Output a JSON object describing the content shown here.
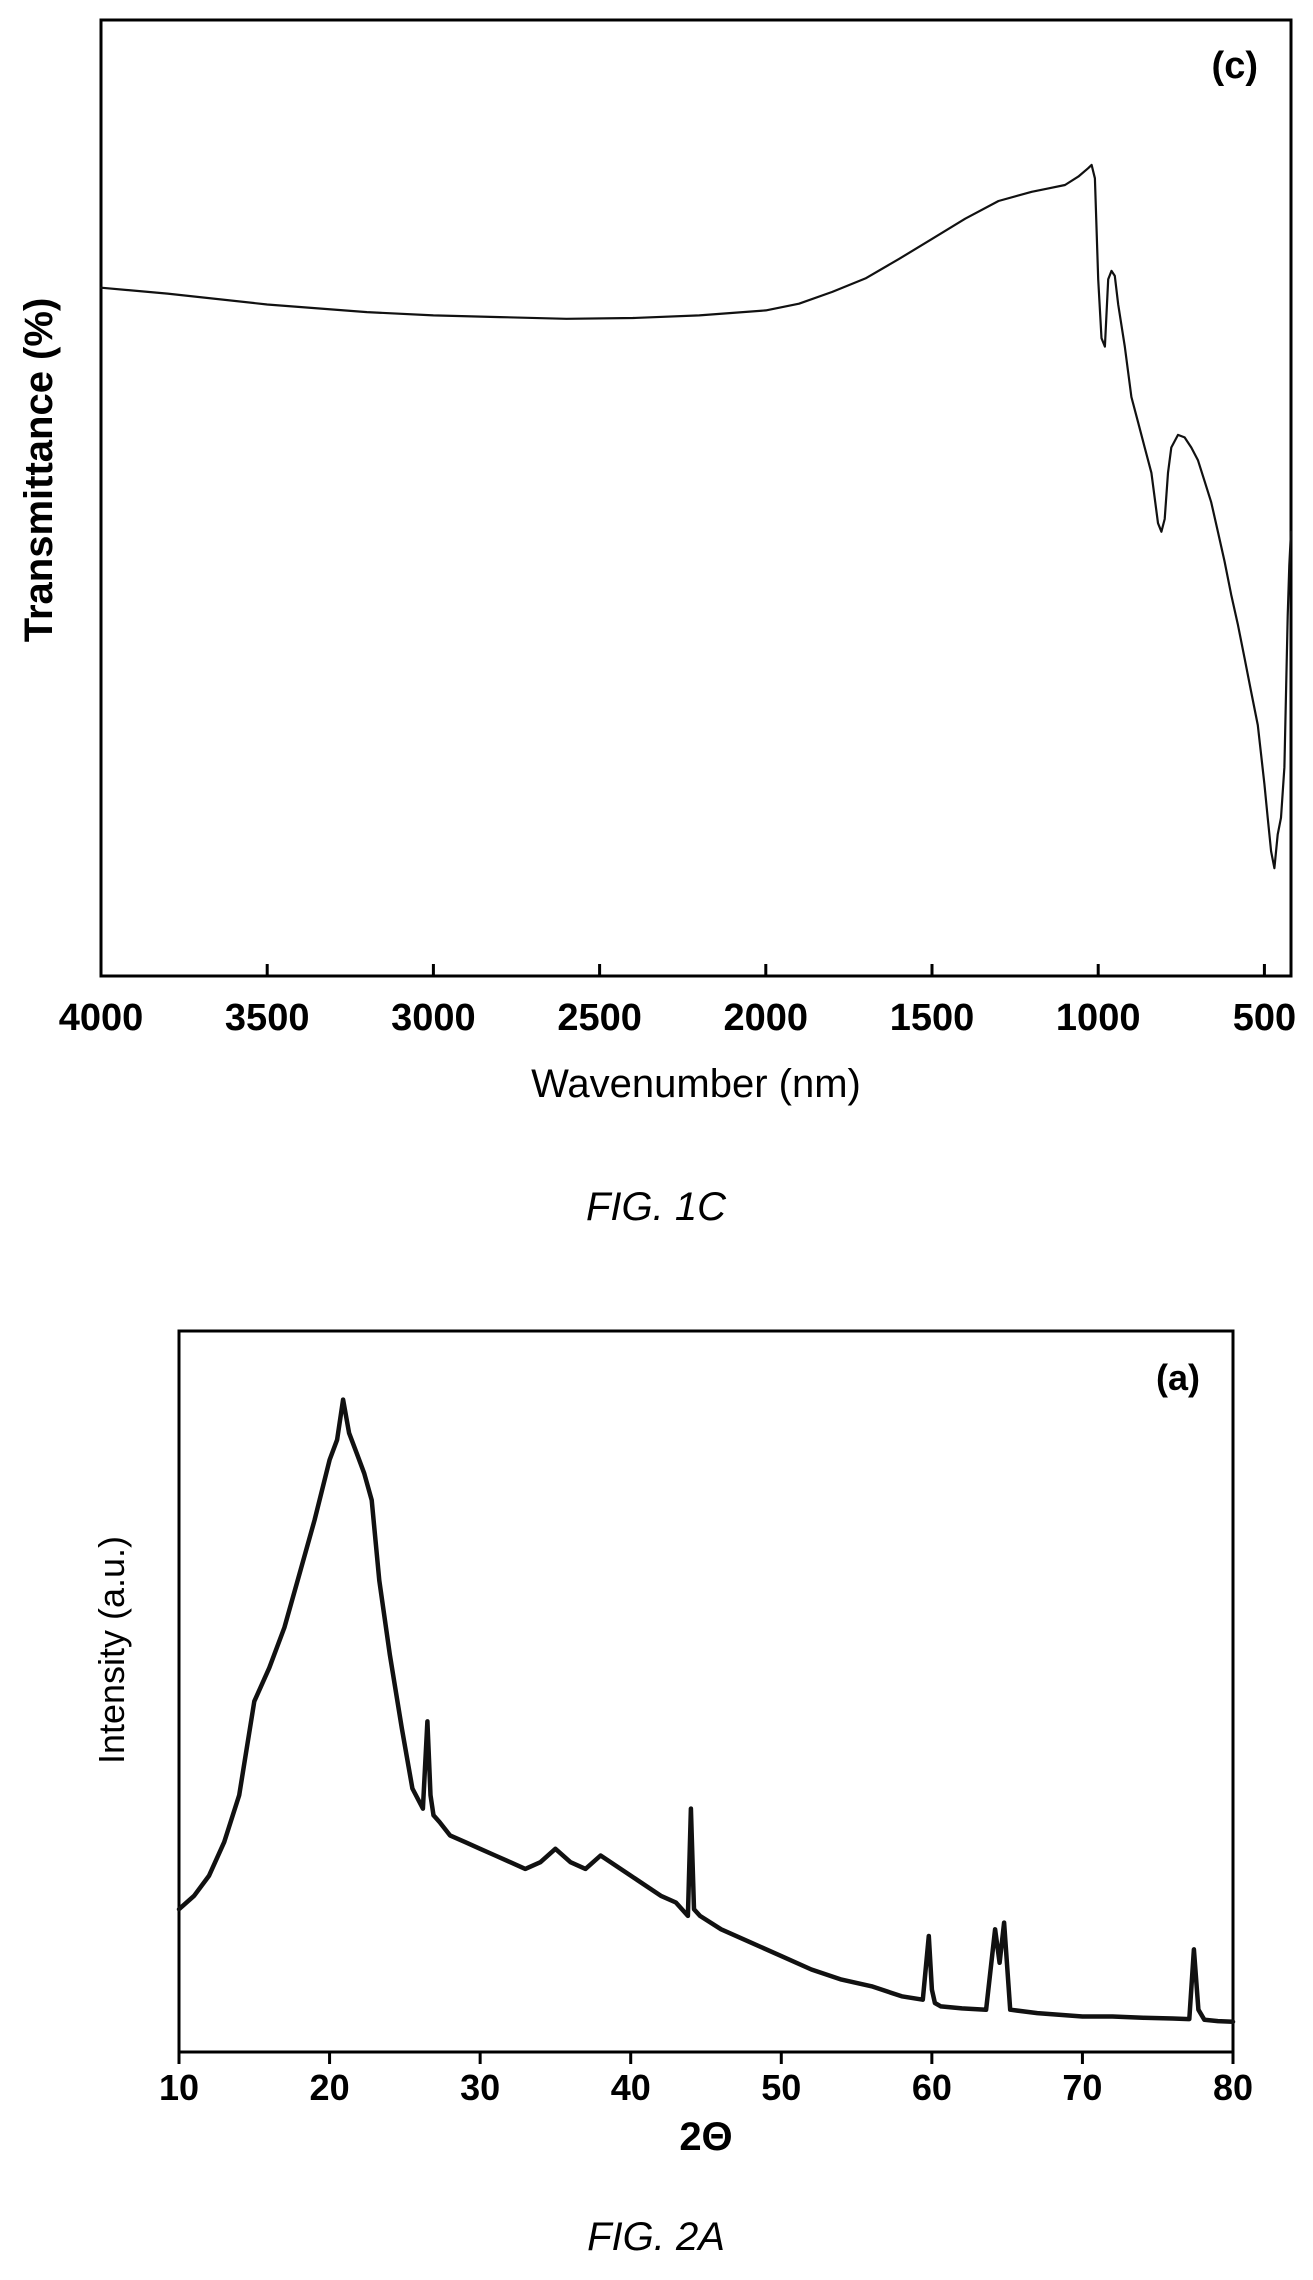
{
  "figures": [
    {
      "caption": "FIG. 1C"
    },
    {
      "caption": "FIG. 2A"
    }
  ],
  "chart_data": [
    {
      "type": "line",
      "panel_label": "(c)",
      "xlabel": "Wavenumber (nm)",
      "ylabel": "Transmittance (%)",
      "xlim": [
        4000,
        420
      ],
      "x_reversed": true,
      "ylim": [
        0,
        100
      ],
      "y_ticks_shown": false,
      "xticks": [
        4000,
        3500,
        3000,
        2500,
        2000,
        1500,
        1000,
        500
      ],
      "xtick_labels": [
        "4000",
        "3500",
        "3000",
        "2500",
        "2000",
        "1500",
        "1000",
        "500"
      ],
      "grid": false,
      "legend": "none",
      "line_color": "#222222",
      "series": [
        {
          "x": [
            4000,
            3800,
            3500,
            3200,
            3000,
            2800,
            2600,
            2400,
            2200,
            2000,
            1900,
            1800,
            1700,
            1600,
            1500,
            1400,
            1300,
            1200,
            1150,
            1100,
            1060,
            1030,
            1020,
            1010,
            1000,
            990,
            980,
            970,
            960,
            950,
            940,
            920,
            900,
            880,
            860,
            840,
            820,
            810,
            800,
            790,
            780,
            760,
            740,
            720,
            700,
            680,
            660,
            640,
            620,
            600,
            580,
            560,
            540,
            520,
            500,
            490,
            480,
            470,
            460,
            450,
            440,
            430,
            425,
            420
          ],
          "y": [
            75,
            74.3,
            73,
            72.1,
            71.7,
            71.5,
            71.3,
            71.4,
            71.7,
            72.3,
            73.1,
            74.5,
            76.1,
            78.4,
            80.8,
            83.2,
            85.3,
            86.4,
            86.8,
            87.2,
            88.2,
            89.2,
            89.6,
            88,
            76,
            69,
            68,
            76,
            77,
            76.4,
            73,
            68,
            62,
            59,
            56,
            53,
            47,
            46,
            47.5,
            53,
            56,
            57.5,
            57.2,
            56,
            54.5,
            52,
            49.5,
            46,
            42.5,
            38.5,
            35,
            31,
            27,
            23,
            16,
            12,
            8,
            6,
            10,
            12,
            18,
            36,
            42,
            46
          ]
        }
      ]
    },
    {
      "type": "line",
      "panel_label": "(a)",
      "xlabel": "2Θ",
      "ylabel": "Intensity (a.u.)",
      "xlim": [
        10,
        80
      ],
      "ylim": [
        0,
        100
      ],
      "y_ticks_shown": false,
      "xticks": [
        10,
        20,
        30,
        40,
        50,
        60,
        70,
        80
      ],
      "xtick_labels": [
        "10",
        "20",
        "30",
        "40",
        "50",
        "60",
        "70",
        "80"
      ],
      "grid": false,
      "legend": "none",
      "line_color": "#000000",
      "series": [
        {
          "x": [
            10,
            11,
            12,
            13,
            14,
            15,
            16,
            17,
            18,
            19,
            20,
            20.5,
            20.9,
            21.3,
            21.8,
            22.3,
            22.8,
            23.3,
            24,
            24.8,
            25.5,
            26.2,
            26.5,
            26.7,
            26.9,
            27.3,
            28,
            29,
            30,
            31,
            32,
            33,
            34,
            35,
            36,
            37,
            38,
            40,
            42,
            43,
            43.8,
            44,
            44.2,
            44.6,
            46,
            48,
            50,
            52,
            54,
            56,
            58,
            59.4,
            59.8,
            60,
            60.2,
            60.6,
            62,
            63.6,
            64.2,
            64.5,
            64.8,
            65.2,
            67,
            70,
            72,
            74,
            76,
            77.1,
            77.4,
            77.7,
            78.1,
            79,
            80
          ],
          "y": [
            17,
            19,
            22,
            27,
            34,
            48,
            53,
            59,
            67,
            75,
            84,
            87,
            93,
            88,
            85,
            82,
            78,
            66,
            55,
            44,
            35,
            32,
            45,
            34,
            31,
            30,
            28,
            27,
            26,
            25,
            24,
            23,
            24,
            26,
            24,
            23,
            25,
            22,
            19,
            18,
            16,
            32,
            17,
            16,
            14,
            12,
            10,
            8,
            6.5,
            5.5,
            4,
            3.5,
            13,
            5,
            3,
            2.5,
            2.2,
            2,
            14,
            9,
            15,
            2,
            1.5,
            1,
            1,
            0.8,
            0.7,
            0.6,
            11,
            2,
            0.5,
            0.3,
            0.2
          ]
        }
      ]
    }
  ]
}
